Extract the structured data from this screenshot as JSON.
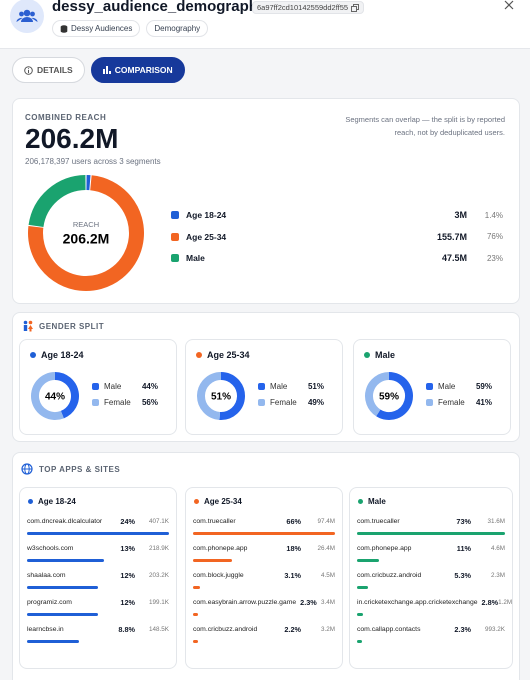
{
  "header": {
    "title": "dessy_audience_demography",
    "id": "6a97ff2cd10142559dd2ff55",
    "tags": [
      "Dessy Audiences",
      "Demography"
    ]
  },
  "tabs": {
    "items": [
      "DETAILS",
      "COMPARISON"
    ],
    "active": 1
  },
  "combined_reach": {
    "label": "COMBINED REACH",
    "total": "206.2M",
    "subtitle": "206,178,397 users across 3 segments",
    "note": "Segments can overlap — the split is by reported reach, not by deduplicated users.",
    "center_label": "REACH",
    "segments": [
      {
        "name": "Age 18-24",
        "color": "#1f5fd6",
        "reach": "3M",
        "share": {
          "value": 1.4,
          "label": "1.4%"
        }
      },
      {
        "name": "Age 25-34",
        "color": "#f26522",
        "reach": "155.7M",
        "share": {
          "value": 76,
          "label": "76%"
        }
      },
      {
        "name": "Male",
        "color": "#1aa36f",
        "reach": "47.5M",
        "share": {
          "value": 23,
          "label": "23%"
        }
      }
    ]
  },
  "gender_split": {
    "title": "GENDER SPLIT",
    "male_color": "#2563eb",
    "female_color": "#93b8ee",
    "panels": [
      {
        "name": "Age 18-24",
        "color": "#1f5fd6",
        "male": {
          "label": "Male",
          "share": {
            "value": 44,
            "label": "44%"
          }
        },
        "female": {
          "label": "Female",
          "share": {
            "value": 56,
            "label": "56%"
          }
        }
      },
      {
        "name": "Age 25-34",
        "color": "#f26522",
        "male": {
          "label": "Male",
          "share": {
            "value": 51,
            "label": "51%"
          }
        },
        "female": {
          "label": "Female",
          "share": {
            "value": 49,
            "label": "49%"
          }
        }
      },
      {
        "name": "Male",
        "color": "#1aa36f",
        "male": {
          "label": "Male",
          "share": {
            "value": 59,
            "label": "59%"
          }
        },
        "female": {
          "label": "Female",
          "share": {
            "value": 41,
            "label": "41%"
          }
        }
      }
    ]
  },
  "top_apps": {
    "title": "TOP APPS & SITES",
    "panels": [
      {
        "name": "Age 18-24",
        "color": "#1f5fd6",
        "items": [
          {
            "name": "com.dncreak.dlcalculator",
            "share": {
              "value": 24,
              "label": "24%"
            },
            "count": "407.1K"
          },
          {
            "name": "w3schools.com",
            "share": {
              "value": 13,
              "label": "13%"
            },
            "count": "218.9K"
          },
          {
            "name": "shaalaa.com",
            "share": {
              "value": 12,
              "label": "12%"
            },
            "count": "203.2K"
          },
          {
            "name": "programiz.com",
            "share": {
              "value": 12,
              "label": "12%"
            },
            "count": "199.1K"
          },
          {
            "name": "learncbse.in",
            "share": {
              "value": 8.8,
              "label": "8.8%"
            },
            "count": "148.5K"
          }
        ]
      },
      {
        "name": "Age 25-34",
        "color": "#f26522",
        "items": [
          {
            "name": "com.truecaller",
            "share": {
              "value": 66,
              "label": "66%"
            },
            "count": "97.4M"
          },
          {
            "name": "com.phonepe.app",
            "share": {
              "value": 18,
              "label": "18%"
            },
            "count": "26.4M"
          },
          {
            "name": "com.block.juggle",
            "share": {
              "value": 3.1,
              "label": "3.1%"
            },
            "count": "4.5M"
          },
          {
            "name": "com.easybrain.arrow.puzzle.game",
            "share": {
              "value": 2.3,
              "label": "2.3%"
            },
            "count": "3.4M"
          },
          {
            "name": "com.cricbuzz.android",
            "share": {
              "value": 2.2,
              "label": "2.2%"
            },
            "count": "3.2M"
          }
        ]
      },
      {
        "name": "Male",
        "color": "#1aa36f",
        "items": [
          {
            "name": "com.truecaller",
            "share": {
              "value": 73,
              "label": "73%"
            },
            "count": "31.6M"
          },
          {
            "name": "com.phonepe.app",
            "share": {
              "value": 11,
              "label": "11%"
            },
            "count": "4.6M"
          },
          {
            "name": "com.cricbuzz.android",
            "share": {
              "value": 5.3,
              "label": "5.3%"
            },
            "count": "2.3M"
          },
          {
            "name": "in.cricketexchange.app.cricketexchange",
            "share": {
              "value": 2.8,
              "label": "2.8%"
            },
            "count": "1.2M"
          },
          {
            "name": "com.callapp.contacts",
            "share": {
              "value": 2.3,
              "label": "2.3%"
            },
            "count": "993.2K"
          }
        ]
      }
    ]
  }
}
